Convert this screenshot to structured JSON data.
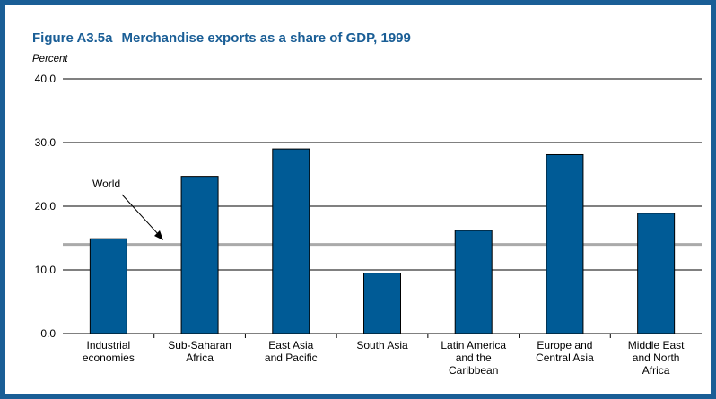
{
  "figure": {
    "label": "Figure A3.5a",
    "title": "Merchandise exports as a share of GDP, 1999",
    "y_unit_label": "Percent"
  },
  "colors": {
    "border": "#1a5e96",
    "title": "#1a5e96",
    "bar_fill": "#005b96",
    "reference_line": "#aaaaaa",
    "gridline": "#000000"
  },
  "chart_data": {
    "type": "bar",
    "categories": [
      [
        "Industrial",
        "economies"
      ],
      [
        "Sub-Saharan",
        "Africa"
      ],
      [
        "East Asia",
        "and Pacific"
      ],
      [
        "South Asia"
      ],
      [
        "Latin America",
        "and the",
        "Caribbean"
      ],
      [
        "Europe and",
        "Central Asia"
      ],
      [
        "Middle East",
        "and North",
        "Africa"
      ]
    ],
    "values": [
      14.9,
      24.7,
      29.0,
      9.5,
      16.2,
      28.1,
      18.9
    ],
    "ylim": [
      0,
      40
    ],
    "yticks": [
      "0.0",
      "10.0",
      "20.0",
      "30.0",
      "40.0"
    ],
    "ytick_values": [
      0,
      10,
      20,
      30,
      40
    ],
    "grid": true,
    "reference": {
      "label": "World",
      "value": 14.0
    }
  }
}
